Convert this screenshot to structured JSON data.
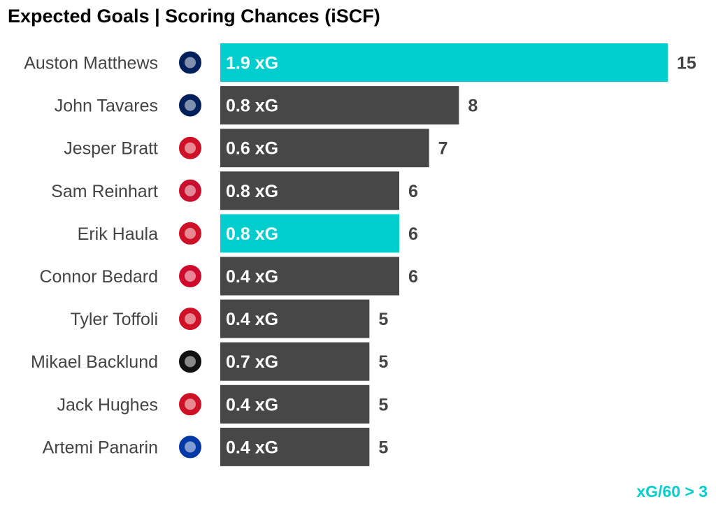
{
  "chart_data": {
    "type": "bar",
    "orientation": "horizontal",
    "title": "Expected Goals | Scoring Chances (iSCF)",
    "xlabel": "",
    "ylabel": "",
    "xlim": [
      0,
      15
    ],
    "grid": false,
    "categories": [
      "Auston Matthews",
      "John Tavares",
      "Jesper Bratt",
      "Sam Reinhart",
      "Erik Haula",
      "Connor Bedard",
      "Tyler Toffoli",
      "Mikael Backlund",
      "Jack Hughes",
      "Artemi Panarin"
    ],
    "teams": [
      "toronto-maple-leafs",
      "toronto-maple-leafs",
      "new-jersey-devils",
      "florida-panthers",
      "new-jersey-devils",
      "chicago-blackhawks",
      "new-jersey-devils",
      "calgary-flames",
      "new-jersey-devils",
      "new-york-rangers"
    ],
    "values": [
      15,
      8,
      7,
      6,
      6,
      6,
      5,
      5,
      5,
      5
    ],
    "xg_labels": [
      "1.9 xG",
      "0.8 xG",
      "0.6 xG",
      "0.8 xG",
      "0.8 xG",
      "0.4 xG",
      "0.4 xG",
      "0.7 xG",
      "0.4 xG",
      "0.4 xG"
    ],
    "highlight": [
      true,
      false,
      false,
      false,
      true,
      false,
      false,
      false,
      false,
      false
    ],
    "highlight_note": "xG/60 > 3",
    "colors": {
      "highlight": "#00CDCD",
      "default": "#474747"
    },
    "team_colors": {
      "toronto-maple-leafs": "#00205B",
      "new-jersey-devils": "#CE1126",
      "florida-panthers": "#C8102E",
      "chicago-blackhawks": "#CF0A2C",
      "calgary-flames": "#111111",
      "new-york-rangers": "#0038A8"
    }
  }
}
